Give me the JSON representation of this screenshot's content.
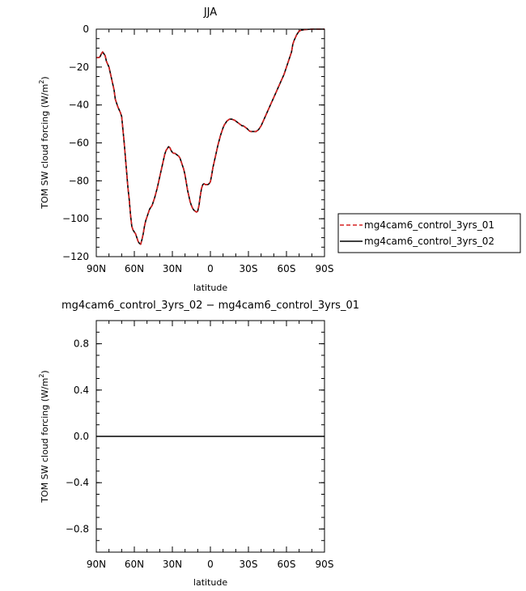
{
  "chart_data": [
    {
      "type": "line",
      "title": "JJA",
      "xlabel": "latitude",
      "ylabel_main": "TOM SW cloud forcing (W/m",
      "ylabel_sup": "2",
      "ylabel_tail": ")",
      "xlim": [
        90,
        -90
      ],
      "ylim": [
        -120,
        0
      ],
      "xticks": [
        90,
        60,
        30,
        0,
        -30,
        -60,
        -90
      ],
      "xtick_labels": [
        "90N",
        "60N",
        "30N",
        "0",
        "30S",
        "60S",
        "90S"
      ],
      "yticks": [
        0,
        -20,
        -40,
        -60,
        -80,
        -100,
        -120
      ],
      "ytick_labels": [
        "0",
        "−20",
        "−40",
        "−60",
        "−80",
        "−100",
        "−120"
      ],
      "legend_position": "right",
      "colors": {
        "series1": "#d62020",
        "series2": "#000000"
      },
      "series": [
        {
          "name": "mg4cam6_control_3yrs_01",
          "style": "dashed",
          "x": [
            90,
            88,
            87,
            86,
            85,
            84,
            83,
            82,
            80,
            78,
            76,
            75,
            73,
            71,
            70,
            69,
            68,
            67,
            66,
            65,
            64,
            63,
            62,
            61,
            60,
            59,
            58,
            57,
            56,
            55,
            54,
            53,
            52,
            51,
            50,
            49,
            48,
            47,
            46,
            45,
            44,
            42,
            41,
            40,
            39,
            38,
            37,
            36,
            35,
            34,
            33,
            32,
            31,
            30,
            29,
            28,
            27,
            26,
            25,
            24,
            23,
            22,
            21,
            20,
            19,
            18,
            17,
            16,
            15,
            14,
            13,
            12,
            11,
            10,
            9,
            8,
            7,
            6,
            5,
            4,
            3,
            2,
            1,
            0,
            -1,
            -2,
            -3,
            -4,
            -5,
            -6,
            -7,
            -8,
            -9,
            -10,
            -11,
            -12,
            -13,
            -14,
            -15,
            -16,
            -17,
            -18,
            -19,
            -20,
            -21,
            -22,
            -23,
            -24,
            -25,
            -26,
            -27,
            -28,
            -29,
            -30,
            -31,
            -32,
            -33,
            -34,
            -35,
            -36,
            -37,
            -38,
            -40,
            -42,
            -44,
            -46,
            -48,
            -50,
            -52,
            -54,
            -56,
            -58,
            -60,
            -62,
            -64,
            -65,
            -66,
            -67,
            -68,
            -69,
            -70,
            -72,
            -75,
            -80,
            -85,
            -90
          ],
          "y": [
            -15,
            -15,
            -14.5,
            -13,
            -12,
            -13,
            -14,
            -17,
            -20,
            -26,
            -32,
            -37,
            -41,
            -44,
            -46,
            -53,
            -60,
            -68,
            -76,
            -84,
            -90,
            -98,
            -104,
            -106,
            -107,
            -108,
            -110,
            -112,
            -113,
            -113.5,
            -111,
            -108,
            -104,
            -101,
            -99,
            -97,
            -95,
            -94,
            -93,
            -91,
            -89,
            -84,
            -81,
            -78,
            -75,
            -72,
            -69,
            -66,
            -64,
            -63,
            -62,
            -62.5,
            -64,
            -65,
            -65.5,
            -65.5,
            -66,
            -66.5,
            -67,
            -68,
            -70,
            -72,
            -74,
            -77,
            -81,
            -85,
            -88,
            -91,
            -93,
            -94.5,
            -95.5,
            -96,
            -96.5,
            -96,
            -93,
            -88,
            -84,
            -82,
            -81.5,
            -82,
            -82,
            -82,
            -81.5,
            -80.5,
            -77,
            -73,
            -70,
            -67,
            -64,
            -61,
            -58.5,
            -56,
            -54,
            -52,
            -50.5,
            -49.5,
            -48.5,
            -48,
            -47.5,
            -47.5,
            -47.5,
            -47.8,
            -48,
            -48.5,
            -49,
            -49.5,
            -50,
            -50.5,
            -51,
            -51,
            -51.5,
            -52,
            -52.5,
            -53.2,
            -53.8,
            -54,
            -54,
            -54,
            -54,
            -54,
            -53.5,
            -53,
            -51,
            -48,
            -45,
            -42,
            -39,
            -36,
            -33,
            -30,
            -27,
            -24,
            -20,
            -16,
            -12,
            -8,
            -6,
            -4.5,
            -3,
            -2,
            -1,
            -0.5,
            -0.2,
            0,
            0,
            0
          ]
        },
        {
          "name": "mg4cam6_control_3yrs_02",
          "style": "solid",
          "x": [
            90,
            88,
            87,
            86,
            85,
            84,
            83,
            82,
            80,
            78,
            76,
            75,
            73,
            71,
            70,
            69,
            68,
            67,
            66,
            65,
            64,
            63,
            62,
            61,
            60,
            59,
            58,
            57,
            56,
            55,
            54,
            53,
            52,
            51,
            50,
            49,
            48,
            47,
            46,
            45,
            44,
            42,
            41,
            40,
            39,
            38,
            37,
            36,
            35,
            34,
            33,
            32,
            31,
            30,
            29,
            28,
            27,
            26,
            25,
            24,
            23,
            22,
            21,
            20,
            19,
            18,
            17,
            16,
            15,
            14,
            13,
            12,
            11,
            10,
            9,
            8,
            7,
            6,
            5,
            4,
            3,
            2,
            1,
            0,
            -1,
            -2,
            -3,
            -4,
            -5,
            -6,
            -7,
            -8,
            -9,
            -10,
            -11,
            -12,
            -13,
            -14,
            -15,
            -16,
            -17,
            -18,
            -19,
            -20,
            -21,
            -22,
            -23,
            -24,
            -25,
            -26,
            -27,
            -28,
            -29,
            -30,
            -31,
            -32,
            -33,
            -34,
            -35,
            -36,
            -37,
            -38,
            -40,
            -42,
            -44,
            -46,
            -48,
            -50,
            -52,
            -54,
            -56,
            -58,
            -60,
            -62,
            -64,
            -65,
            -66,
            -67,
            -68,
            -69,
            -70,
            -72,
            -75,
            -80,
            -85,
            -90
          ],
          "y": [
            -15,
            -15,
            -14.5,
            -13,
            -12,
            -13,
            -14,
            -17,
            -20,
            -26,
            -32,
            -37,
            -41,
            -44,
            -46,
            -53,
            -60,
            -68,
            -76,
            -84,
            -90,
            -98,
            -104,
            -106,
            -107,
            -108,
            -110,
            -112,
            -113,
            -113.5,
            -111,
            -108,
            -104,
            -101,
            -99,
            -97,
            -95,
            -94,
            -93,
            -91,
            -89,
            -84,
            -81,
            -78,
            -75,
            -72,
            -69,
            -66,
            -64,
            -63,
            -62,
            -62.5,
            -64,
            -65,
            -65.5,
            -65.5,
            -66,
            -66.5,
            -67,
            -68,
            -70,
            -72,
            -74,
            -77,
            -81,
            -85,
            -88,
            -91,
            -93,
            -94.5,
            -95.5,
            -96,
            -96.5,
            -96,
            -93,
            -88,
            -84,
            -82,
            -81.5,
            -82,
            -82,
            -82,
            -81.5,
            -80.5,
            -77,
            -73,
            -70,
            -67,
            -64,
            -61,
            -58.5,
            -56,
            -54,
            -52,
            -50.5,
            -49.5,
            -48.5,
            -48,
            -47.5,
            -47.5,
            -47.5,
            -47.8,
            -48,
            -48.5,
            -49,
            -49.5,
            -50,
            -50.5,
            -51,
            -51,
            -51.5,
            -52,
            -52.5,
            -53.2,
            -53.8,
            -54,
            -54,
            -54,
            -54,
            -54,
            -53.5,
            -53,
            -51,
            -48,
            -45,
            -42,
            -39,
            -36,
            -33,
            -30,
            -27,
            -24,
            -20,
            -16,
            -12,
            -8,
            -6,
            -4.5,
            -3,
            -2,
            -1,
            -0.5,
            -0.2,
            0,
            0,
            0
          ]
        }
      ]
    },
    {
      "type": "line",
      "title": "mg4cam6_control_3yrs_02 − mg4cam6_control_3yrs_01",
      "xlabel": "latitude",
      "ylabel_main": "TOM SW cloud forcing (W/m",
      "ylabel_sup": "2",
      "ylabel_tail": ")",
      "xlim": [
        90,
        -90
      ],
      "ylim": [
        -1,
        1
      ],
      "xticks": [
        90,
        60,
        30,
        0,
        -30,
        -60,
        -90
      ],
      "xtick_labels": [
        "90N",
        "60N",
        "30N",
        "0",
        "30S",
        "60S",
        "90S"
      ],
      "yticks": [
        0.8,
        0.4,
        0.0,
        -0.4,
        -0.8
      ],
      "ytick_labels": [
        "0.8",
        "0.4",
        "0.0",
        "−0.4",
        "−0.8"
      ],
      "colors": {
        "series1": "#000000"
      },
      "series": [
        {
          "style": "solid",
          "x": [
            90,
            -90
          ],
          "y": [
            0,
            0
          ]
        }
      ]
    }
  ]
}
